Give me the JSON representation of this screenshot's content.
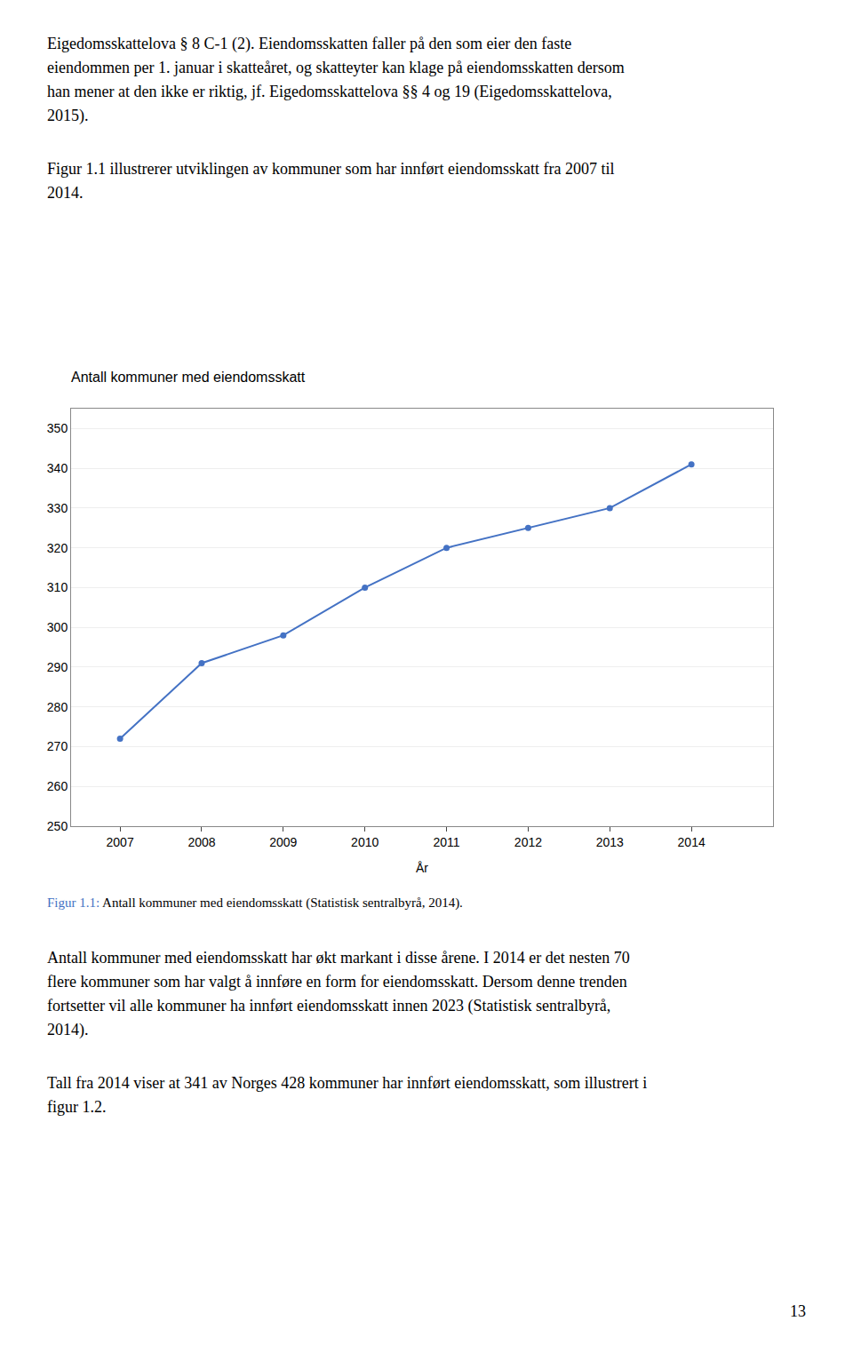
{
  "chart_data": {
    "type": "line",
    "title": "Antall kommuner med eiendomsskatt",
    "xlabel": "År",
    "x": [
      2007,
      2008,
      2009,
      2010,
      2011,
      2012,
      2013,
      2014
    ],
    "values": [
      272,
      291,
      298,
      310,
      320,
      325,
      330,
      341
    ],
    "color": "#4472C4",
    "marker": "circle",
    "line_style": "solid",
    "xlim": [
      2006.4,
      2015.0
    ],
    "xticks": [
      2007,
      2008,
      2009,
      2010,
      2011,
      2012,
      2013,
      2014
    ],
    "ylim": [
      250,
      355
    ],
    "yticks": [
      250,
      260,
      270,
      280,
      290,
      300,
      310,
      320,
      330,
      340,
      350
    ],
    "grid": "y"
  },
  "paragraphs_above": [
    [
      "Eigedomsskattelova § 8 C-1 (2). Eiendomsskatten faller på den som eier den faste",
      "eiendommen per 1. januar i skatteåret, og skatteyter kan klage på eiendomsskatten dersom",
      "han mener at den ikke er riktig, jf. Eigedomsskattelova §§ 4 og 19 (Eigedomsskattelova,",
      "2015)."
    ],
    [
      "Figur 1.1 illustrerer utviklingen av kommuner som har innført eiendomsskatt fra 2007 til",
      "2014."
    ]
  ],
  "caption": {
    "label": "Figur 1.1:",
    "text": " Antall kommuner med eiendomsskatt (Statistisk sentralbyrå, 2014).",
    "color": "#4472C4"
  },
  "paragraphs_below": [
    [
      "Antall kommuner med eiendomsskatt har økt markant i disse årene. I 2014 er det nesten 70",
      "flere kommuner som har valgt å innføre en form for eiendomsskatt. Dersom denne trenden",
      "fortsetter vil alle kommuner ha innført eiendomsskatt innen 2023 (Statistisk sentralbyrå,",
      "2014)."
    ],
    [
      "Tall fra 2014 viser at 341 av Norges 428 kommuner har innført eiendomsskatt, som illustrert i",
      "figur 1.2."
    ]
  ],
  "page_number": "13"
}
